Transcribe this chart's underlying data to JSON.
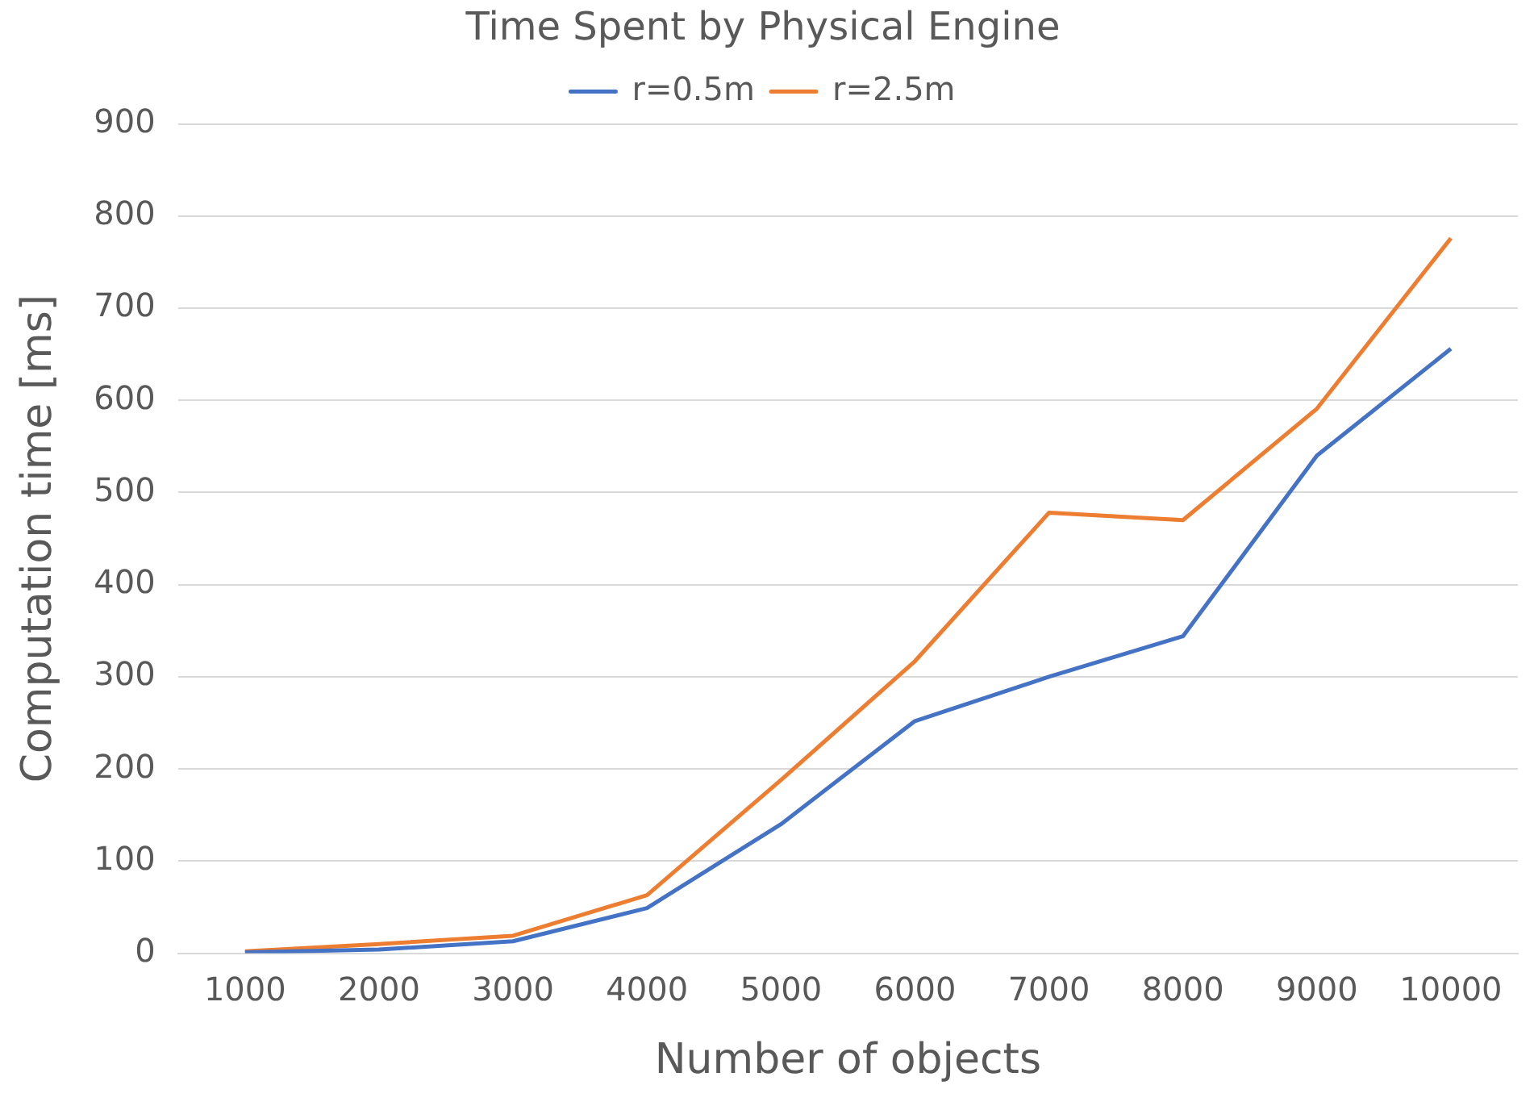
{
  "chart_data": {
    "type": "line",
    "title": "Time Spent by Physical Engine",
    "xlabel": "Number of objects",
    "ylabel": "Computation time [ms]",
    "categories": [
      "1000",
      "2000",
      "3000",
      "4000",
      "5000",
      "6000",
      "7000",
      "8000",
      "9000",
      "10000"
    ],
    "series": [
      {
        "name": "r=0.5m",
        "color": "#4472c4",
        "values": [
          1,
          4,
          13,
          49,
          140,
          252,
          300,
          344,
          540,
          656
        ]
      },
      {
        "name": "r=2.5m",
        "color": "#ed7d31",
        "values": [
          2,
          10,
          19,
          63,
          188,
          317,
          478,
          470,
          591,
          776
        ]
      }
    ],
    "ylim": [
      0,
      900
    ],
    "yticks": [
      0,
      100,
      200,
      300,
      400,
      500,
      600,
      700,
      800,
      900
    ],
    "grid": "y",
    "legend": "top",
    "marker": "none",
    "line_style": "solid"
  }
}
